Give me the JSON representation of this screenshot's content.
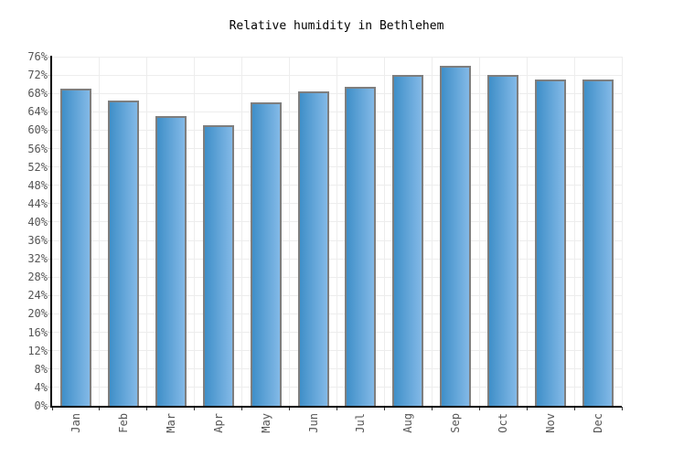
{
  "title": "Relative humidity in Bethlehem",
  "chart_data": {
    "type": "bar",
    "title": "Relative humidity in Bethlehem",
    "categories": [
      "Jan",
      "Feb",
      "Mar",
      "Apr",
      "May",
      "Jun",
      "Jul",
      "Aug",
      "Sep",
      "Oct",
      "Nov",
      "Dec"
    ],
    "values": [
      69,
      66.5,
      63,
      61,
      66,
      68.5,
      69.5,
      72,
      74,
      72,
      71,
      71
    ],
    "unit": "%",
    "xlabel": "",
    "ylabel": "",
    "ylim": [
      0,
      76
    ],
    "ytick_step": 4,
    "ytick_labels": [
      "0%",
      "4%",
      "8%",
      "12%",
      "16%",
      "20%",
      "24%",
      "28%",
      "32%",
      "36%",
      "40%",
      "44%",
      "48%",
      "52%",
      "56%",
      "60%",
      "64%",
      "68%",
      "72%",
      "76%"
    ],
    "grid": true,
    "legend": "none",
    "colors": {
      "bar_gradient_left": "#3f8fc8",
      "bar_gradient_right": "#83b9e7",
      "bar_border": "#7e7e7e",
      "gridline": "#ededed",
      "axis": "#000000",
      "tick": "#cccccc",
      "label_text": "#555555",
      "title_text": "#000000",
      "background": "#ffffff"
    }
  }
}
